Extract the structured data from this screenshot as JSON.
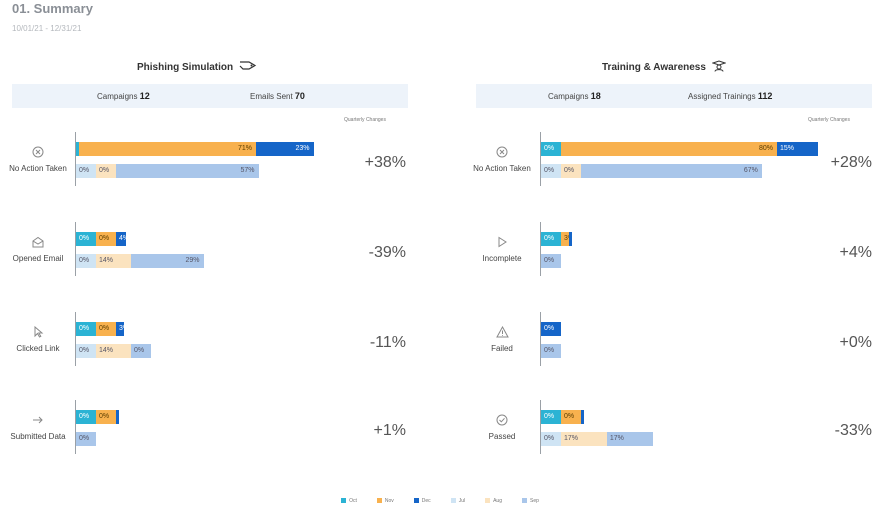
{
  "header": {
    "title": "01. Summary",
    "date_range": "10/01/21 - 12/31/21"
  },
  "colors": {
    "oct": "#2bb3d4",
    "nov": "#f8b14e",
    "dec": "#1565c8",
    "jul": "#cfe4f4",
    "aug": "#fbe3bf",
    "sep": "#a9c6ea"
  },
  "legend": [
    "Oct",
    "Nov",
    "Dec",
    "Jul",
    "Aug",
    "Sep"
  ],
  "quarterly_changes_label": "Quarterly Changes",
  "sections": [
    {
      "title": "Phishing Simulation",
      "icon": "fishing-hook-icon",
      "stats": [
        {
          "label": "Campaigns",
          "value": "12"
        },
        {
          "label": "Emails Sent",
          "value": "70"
        }
      ],
      "metrics": [
        {
          "name": "No Action Taken",
          "icon": "x-circle-icon",
          "change": "+38%",
          "current": {
            "values": [
              1,
              71,
              23
            ],
            "labels": [
              "1%",
              "71%",
              "23%"
            ]
          },
          "previous": {
            "values": [
              0,
              0,
              57
            ],
            "labels": [
              "0%",
              "0%",
              "57%"
            ]
          }
        },
        {
          "name": "Opened Email",
          "icon": "envelope-open-icon",
          "change": "-39%",
          "current": {
            "values": [
              0,
              0,
              4
            ],
            "labels": [
              "0%",
              "0%",
              "4%"
            ]
          },
          "previous": {
            "values": [
              0,
              14,
              29
            ],
            "labels": [
              "0%",
              "14%",
              "29%"
            ]
          }
        },
        {
          "name": "Clicked Link",
          "icon": "cursor-icon",
          "change": "-11%",
          "current": {
            "values": [
              0,
              0,
              3
            ],
            "labels": [
              "0%",
              "0%",
              "3%"
            ]
          },
          "previous": {
            "values": [
              0,
              14,
              0
            ],
            "labels": [
              "0%",
              "14%",
              "0%"
            ]
          }
        },
        {
          "name": "Submitted Data",
          "icon": "arrow-right-icon",
          "change": "+1%",
          "current": {
            "values": [
              0,
              0,
              1
            ],
            "labels": [
              "0%",
              "0%",
              "1%"
            ]
          },
          "previous": {
            "values": [
              0,
              0,
              0
            ],
            "labels": [
              "",
              "",
              "0%"
            ]
          }
        }
      ]
    },
    {
      "title": "Training & Awareness",
      "icon": "graduate-icon",
      "stats": [
        {
          "label": "Campaigns",
          "value": "18"
        },
        {
          "label": "Assigned Trainings",
          "value": "112"
        }
      ],
      "metrics": [
        {
          "name": "No Action Taken",
          "icon": "x-circle-icon",
          "change": "+28%",
          "current": {
            "values": [
              0,
              80,
              15
            ],
            "labels": [
              "0%",
              "80%",
              "15%"
            ]
          },
          "previous": {
            "values": [
              0,
              0,
              67
            ],
            "labels": [
              "0%",
              "0%",
              "67%"
            ]
          }
        },
        {
          "name": "Incomplete",
          "icon": "play-outline-icon",
          "change": "+4%",
          "current": {
            "values": [
              0,
              3,
              1
            ],
            "labels": [
              "0%",
              "3%",
              "1%"
            ]
          },
          "previous": {
            "values": [
              0,
              0,
              0
            ],
            "labels": [
              "",
              "",
              "0%"
            ]
          }
        },
        {
          "name": "Failed",
          "icon": "warning-icon",
          "change": "+0%",
          "current": {
            "values": [
              0,
              0,
              0
            ],
            "labels": [
              "",
              "",
              "0%"
            ]
          },
          "previous": {
            "values": [
              0,
              0,
              0
            ],
            "labels": [
              "",
              "",
              "0%"
            ]
          }
        },
        {
          "name": "Passed",
          "icon": "check-circle-icon",
          "change": "-33%",
          "current": {
            "values": [
              0,
              0,
              1
            ],
            "labels": [
              "0%",
              "0%",
              "1%"
            ]
          },
          "previous": {
            "values": [
              0,
              17,
              17
            ],
            "labels": [
              "0%",
              "17%",
              "17%"
            ]
          }
        }
      ]
    }
  ]
}
